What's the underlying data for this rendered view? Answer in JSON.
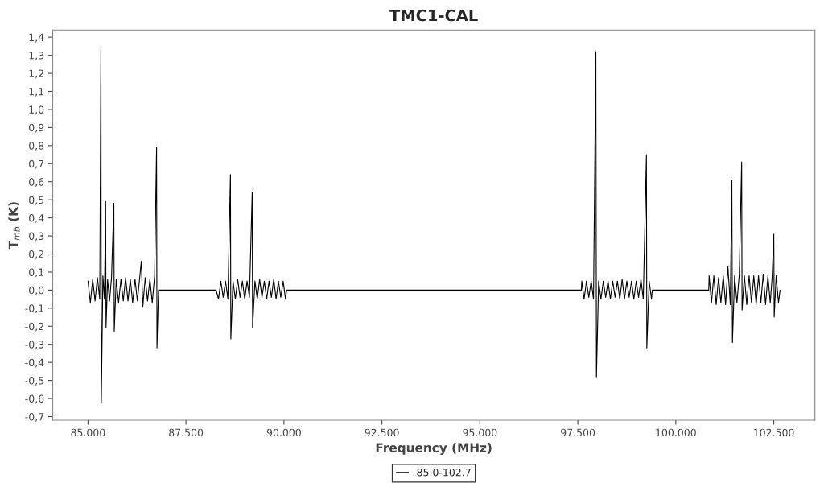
{
  "chart_data": {
    "type": "line",
    "title": "TMC1-CAL",
    "xlabel": "Frequency (MHz)",
    "ylabel": "T$_{mb}$ (K)",
    "xlim": [
      84100,
      103550
    ],
    "ylim": [
      -0.72,
      1.44
    ],
    "xticks": [
      {
        "value": 85000,
        "label": "85.000"
      },
      {
        "value": 87500,
        "label": "87.500"
      },
      {
        "value": 90000,
        "label": "90.000"
      },
      {
        "value": 92500,
        "label": "92.500"
      },
      {
        "value": 95000,
        "label": "95.000"
      },
      {
        "value": 97500,
        "label": "97.500"
      },
      {
        "value": 100000,
        "label": "100.000"
      },
      {
        "value": 102500,
        "label": "102.500"
      }
    ],
    "yticks": [
      {
        "value": -0.7,
        "label": "-0,7"
      },
      {
        "value": -0.6,
        "label": "-0,6"
      },
      {
        "value": -0.5,
        "label": "-0,5"
      },
      {
        "value": -0.4,
        "label": "-0,4"
      },
      {
        "value": -0.3,
        "label": "-0,3"
      },
      {
        "value": -0.2,
        "label": "-0,2"
      },
      {
        "value": -0.1,
        "label": "-0,1"
      },
      {
        "value": 0.0,
        "label": "0,0"
      },
      {
        "value": 0.1,
        "label": "0,1"
      },
      {
        "value": 0.2,
        "label": "0,2"
      },
      {
        "value": 0.3,
        "label": "0,3"
      },
      {
        "value": 0.4,
        "label": "0,4"
      },
      {
        "value": 0.5,
        "label": "0,5"
      },
      {
        "value": 0.6,
        "label": "0,6"
      },
      {
        "value": 0.7,
        "label": "0,7"
      },
      {
        "value": 0.8,
        "label": "0,8"
      },
      {
        "value": 0.9,
        "label": "0,9"
      },
      {
        "value": 1.0,
        "label": "1,0"
      },
      {
        "value": 1.1,
        "label": "1,1"
      },
      {
        "value": 1.2,
        "label": "1,2"
      },
      {
        "value": 1.3,
        "label": "1,3"
      },
      {
        "value": 1.4,
        "label": "1,4"
      }
    ],
    "grid": false,
    "legend": "bottom",
    "marker": "none",
    "line_style": "solid",
    "series": [
      {
        "name": "85.0-102.7",
        "color": "#000000",
        "x": [
          85000,
          85060,
          85120,
          85180,
          85240,
          85300,
          85330,
          85340,
          85380,
          85420,
          85450,
          85460,
          85500,
          85550,
          85600,
          85660,
          85670,
          85720,
          85780,
          85840,
          85900,
          85960,
          86020,
          86080,
          86140,
          86200,
          86260,
          86320,
          86360,
          86400,
          86460,
          86520,
          86580,
          86640,
          86700,
          86750,
          86760,
          86800,
          88270,
          88330,
          88390,
          88450,
          88510,
          88570,
          88635,
          88645,
          88700,
          88760,
          88820,
          88880,
          88940,
          89000,
          89060,
          89120,
          89190,
          89200,
          89260,
          89320,
          89380,
          89440,
          89500,
          89560,
          89620,
          89680,
          89740,
          89800,
          89860,
          89920,
          89980,
          90040,
          90070,
          97590,
          97600,
          97660,
          97720,
          97780,
          97840,
          97900,
          97960,
          97975,
          98030,
          98090,
          98150,
          98210,
          98270,
          98330,
          98390,
          98450,
          98510,
          98570,
          98630,
          98690,
          98750,
          98810,
          98870,
          98930,
          98990,
          99050,
          99110,
          99170,
          99250,
          99260,
          99320,
          99380,
          99400,
          100840,
          100850,
          100910,
          100970,
          101030,
          101090,
          101150,
          101210,
          101270,
          101330,
          101390,
          101430,
          101445,
          101500,
          101560,
          101620,
          101680,
          101690,
          101750,
          101810,
          101870,
          101930,
          101990,
          102050,
          102110,
          102170,
          102230,
          102290,
          102350,
          102410,
          102460,
          102500,
          102510,
          102560,
          102620,
          102660
        ],
        "values": [
          0.05,
          -0.07,
          0.06,
          -0.06,
          0.07,
          -0.05,
          1.34,
          -0.62,
          0.08,
          -0.05,
          0.49,
          -0.21,
          0.06,
          -0.06,
          0.07,
          0.48,
          -0.23,
          0.06,
          -0.07,
          0.06,
          -0.06,
          0.07,
          -0.06,
          0.06,
          -0.07,
          0.06,
          -0.06,
          0.07,
          0.16,
          -0.09,
          0.07,
          -0.06,
          0.06,
          -0.07,
          0.08,
          0.79,
          -0.32,
          0.0,
          0.0,
          -0.05,
          0.05,
          -0.04,
          0.05,
          -0.05,
          0.64,
          -0.27,
          0.05,
          -0.05,
          0.06,
          -0.04,
          0.05,
          -0.05,
          0.05,
          -0.04,
          0.54,
          -0.21,
          0.05,
          -0.05,
          0.06,
          -0.04,
          0.05,
          -0.05,
          0.05,
          -0.04,
          0.06,
          -0.05,
          0.05,
          -0.04,
          0.05,
          -0.05,
          0.0,
          0.0,
          0.05,
          -0.05,
          0.05,
          -0.04,
          0.05,
          -0.05,
          1.32,
          -0.48,
          0.05,
          -0.05,
          0.05,
          -0.04,
          0.05,
          -0.05,
          0.05,
          -0.04,
          0.05,
          -0.05,
          0.06,
          -0.05,
          0.05,
          -0.04,
          0.05,
          -0.05,
          0.05,
          -0.04,
          0.06,
          -0.05,
          0.75,
          -0.32,
          0.05,
          -0.05,
          0.0,
          0.0,
          0.08,
          -0.07,
          0.08,
          -0.08,
          0.07,
          -0.07,
          0.08,
          -0.08,
          0.13,
          -0.08,
          0.61,
          -0.29,
          0.08,
          -0.07,
          0.09,
          0.71,
          -0.11,
          0.08,
          -0.08,
          0.08,
          -0.07,
          0.08,
          -0.08,
          0.08,
          -0.07,
          0.09,
          -0.08,
          0.08,
          -0.07,
          0.08,
          0.31,
          -0.15,
          0.08,
          -0.07,
          0.0
        ]
      }
    ]
  }
}
